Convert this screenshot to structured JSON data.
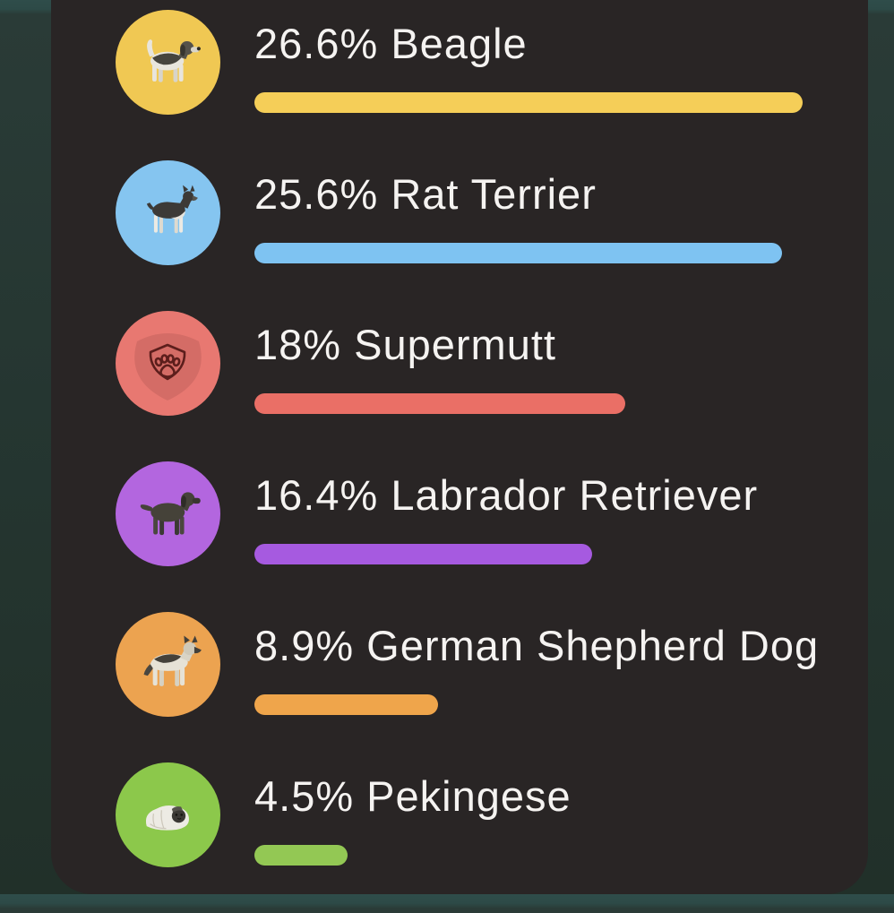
{
  "screen": {
    "name": "breed-mix-results",
    "text_color": "#f5f3f1",
    "card_color": "#292525",
    "background_top_color": "#2d4a47",
    "background_bottom_color": "#213029"
  },
  "rows": [
    {
      "percent": 26.6,
      "percent_label": "26.6%",
      "breed": "Beagle",
      "label": "26.6% Beagle",
      "circle_color": "#f0c853",
      "bar_color": "#f5ce58",
      "icon": "beagle-dog-art"
    },
    {
      "percent": 25.6,
      "percent_label": "25.6%",
      "breed": "Rat Terrier",
      "label": "25.6% Rat Terrier",
      "circle_color": "#85c5f0",
      "bar_color": "#7ec3f2",
      "icon": "rat-terrier-dog-art"
    },
    {
      "percent": 18,
      "percent_label": "18%",
      "breed": "Supermutt",
      "label": "18% Supermutt",
      "circle_color": "#e87871",
      "bar_color": "#ea6f66",
      "icon": "paw-shield-icon"
    },
    {
      "percent": 16.4,
      "percent_label": "16.4%",
      "breed": "Labrador Retriever",
      "label": "16.4% Labrador Retriever",
      "circle_color": "#b366df",
      "bar_color": "#a65ae0",
      "icon": "labrador-retriever-dog-art"
    },
    {
      "percent": 8.9,
      "percent_label": "8.9%",
      "breed": "German Shepherd Dog",
      "label": "8.9% German Shepherd Dog",
      "circle_color": "#eca350",
      "bar_color": "#efa54b",
      "icon": "german-shepherd-dog-art"
    },
    {
      "percent": 4.5,
      "percent_label": "4.5%",
      "breed": "Pekingese",
      "label": "4.5% Pekingese",
      "circle_color": "#8cc84b",
      "bar_color": "#93c854",
      "icon": "pekingese-dog-art"
    }
  ]
}
